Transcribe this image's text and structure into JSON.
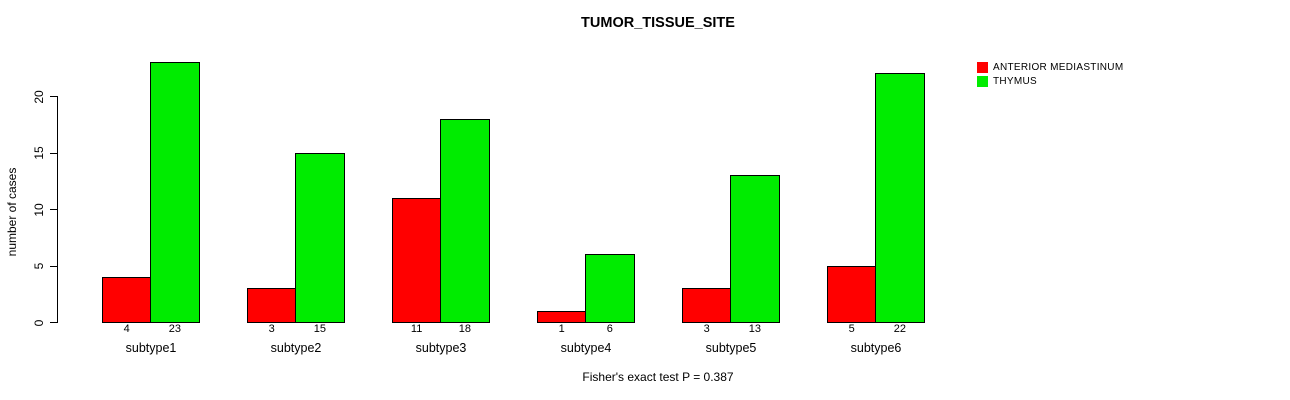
{
  "chart_data": {
    "type": "bar",
    "title": "TUMOR_TISSUE_SITE",
    "xlabel": "",
    "ylabel": "number of cases",
    "categories": [
      "subtype1",
      "subtype2",
      "subtype3",
      "subtype4",
      "subtype5",
      "subtype6"
    ],
    "series": [
      {
        "name": "ANTERIOR MEDIASTINUM",
        "color": "#ff0000",
        "values": [
          4,
          3,
          11,
          1,
          3,
          5
        ]
      },
      {
        "name": "THYMUS",
        "color": "#00ec00",
        "values": [
          23,
          15,
          18,
          6,
          13,
          22
        ]
      }
    ],
    "bar_value_labels": [
      [
        "4",
        "23"
      ],
      [
        "3",
        "15"
      ],
      [
        "11",
        "18"
      ],
      [
        "1",
        "6"
      ],
      [
        "3",
        "13"
      ],
      [
        "5",
        "22"
      ]
    ],
    "yticks": [
      0,
      5,
      10,
      15,
      20
    ],
    "ylim": [
      0,
      23
    ],
    "grid": false,
    "legend_position": "top-right",
    "annotation": "Fisher's exact test P = 0.387"
  },
  "colors": {
    "background": "#ffffff",
    "axis": "#000000",
    "text": "#000000",
    "series1": "#ff0000",
    "series2": "#00ec00"
  }
}
